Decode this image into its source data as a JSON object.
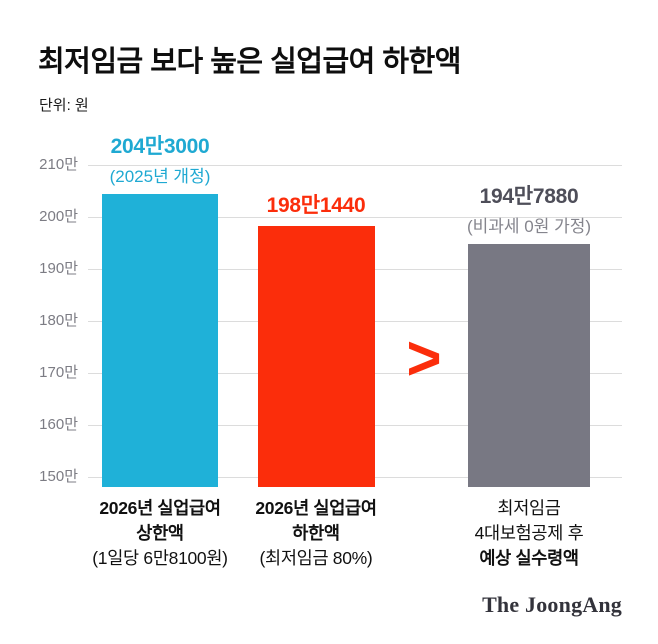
{
  "header": {
    "title": "최저임금 보다 높은 실업급여 하한액",
    "unit_label": "단위: 원"
  },
  "chart_data": {
    "type": "bar",
    "unit": "원",
    "y_min": 1480000,
    "y_max": 2128000,
    "grid": true,
    "y_ticks": [
      {
        "label": "210만",
        "value": 2100000
      },
      {
        "label": "200만",
        "value": 2000000
      },
      {
        "label": "190만",
        "value": 1900000
      },
      {
        "label": "180만",
        "value": 1800000
      },
      {
        "label": "170만",
        "value": 1700000
      },
      {
        "label": "160만",
        "value": 1600000
      },
      {
        "label": "150만",
        "value": 1500000
      }
    ],
    "bars": [
      {
        "value": 2043000,
        "value_label": "204만3000",
        "sub_label": "(2025년 개정)",
        "color": "#1FB1D8",
        "label_color": "#1FA9D2",
        "category_lines": [
          "2026년 실업급여",
          "상한액",
          "(1일당 6만8100원)"
        ]
      },
      {
        "value": 1981440,
        "value_label": "198만1440",
        "color": "#FB2D0B",
        "label_color": "#FB2D0B",
        "category_lines": [
          "2026년 실업급여",
          "하한액",
          "(최저임금 80%)"
        ]
      },
      {
        "value": 1947880,
        "value_label": "194만7880",
        "sub_label": "(비과세 0원 가정)",
        "color": "#787883",
        "label_color": "#4E4E59",
        "sub_label_color": "#85858D",
        "category_lines": [
          "최저임금",
          "4대보험공제 후",
          "예상 실수령액"
        ]
      }
    ],
    "comparison_symbol": ">",
    "comparison_color": "#FB2D0B"
  },
  "footer": {
    "brand": "The JoongAng"
  }
}
